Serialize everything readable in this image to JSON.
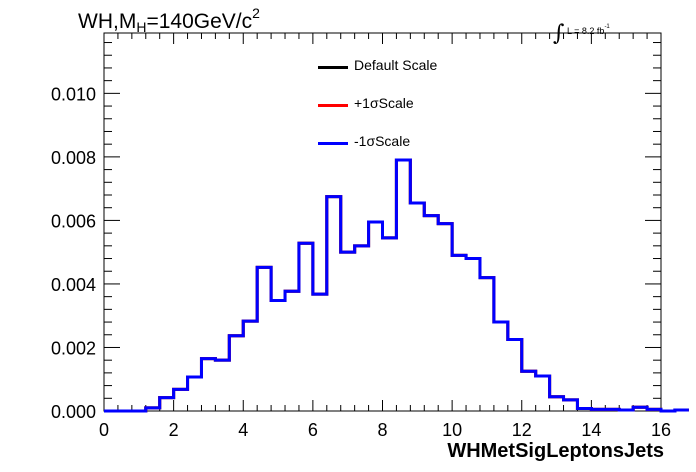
{
  "chart_data": {
    "type": "histogram",
    "title_main": "WH,M",
    "title_sub": "H",
    "title_rest": "=140GeV/c",
    "title_sup": "2",
    "lumi_text": "L = 8.2 fb",
    "lumi_sup": "-1",
    "xlabel": "WHMetSigLeptonsJets",
    "ylabel": "",
    "xlim": [
      0,
      16
    ],
    "ylim": [
      0,
      0.0119
    ],
    "xticks": [
      "0",
      "2",
      "4",
      "6",
      "8",
      "10",
      "12",
      "14",
      "16"
    ],
    "yticks": [
      "0.000",
      "0.002",
      "0.004",
      "0.006",
      "0.008",
      "0.010"
    ],
    "bin_width": 0.4,
    "series": [
      {
        "name": "Default Scale",
        "color": "#000000",
        "values": [
          0,
          0,
          0,
          0.0001,
          0.00042,
          0.00068,
          0.00107,
          0.00165,
          0.0016,
          0.00237,
          0.00283,
          0.00452,
          0.00348,
          0.00377,
          0.00528,
          0.00368,
          0.00675,
          0.005,
          0.0052,
          0.00595,
          0.00545,
          0.0079,
          0.00655,
          0.00615,
          0.0059,
          0.0049,
          0.0048,
          0.0042,
          0.0028,
          0.00225,
          0.00125,
          0.0011,
          0.00045,
          0.00035,
          8e-05,
          5e-05,
          5e-05,
          3e-05,
          0.00012,
          5e-05,
          0,
          3e-05
        ]
      },
      {
        "name": "+1σScale",
        "color": "#ff0000",
        "values": [
          0,
          0,
          0,
          0.0001,
          0.00042,
          0.00068,
          0.00107,
          0.00165,
          0.0016,
          0.00237,
          0.00283,
          0.00452,
          0.00348,
          0.00377,
          0.00528,
          0.00368,
          0.00675,
          0.005,
          0.0052,
          0.00595,
          0.00545,
          0.0079,
          0.00655,
          0.00615,
          0.0059,
          0.0049,
          0.0048,
          0.0042,
          0.0028,
          0.00225,
          0.00125,
          0.0011,
          0.00045,
          0.00035,
          8e-05,
          5e-05,
          5e-05,
          3e-05,
          0.00012,
          5e-05,
          0,
          3e-05
        ]
      },
      {
        "name": "-1σScale",
        "color": "#0000ff",
        "values": [
          0,
          0,
          0,
          0.0001,
          0.00042,
          0.00068,
          0.00107,
          0.00165,
          0.0016,
          0.00237,
          0.00283,
          0.00452,
          0.00348,
          0.00377,
          0.00528,
          0.00368,
          0.00675,
          0.005,
          0.0052,
          0.00595,
          0.00545,
          0.0079,
          0.00655,
          0.00615,
          0.0059,
          0.0049,
          0.0048,
          0.0042,
          0.0028,
          0.00225,
          0.00125,
          0.0011,
          0.00045,
          0.00035,
          8e-05,
          5e-05,
          5e-05,
          3e-05,
          0.00012,
          5e-05,
          0,
          3e-05
        ]
      }
    ],
    "legend_position": "top-center",
    "grid": false
  }
}
